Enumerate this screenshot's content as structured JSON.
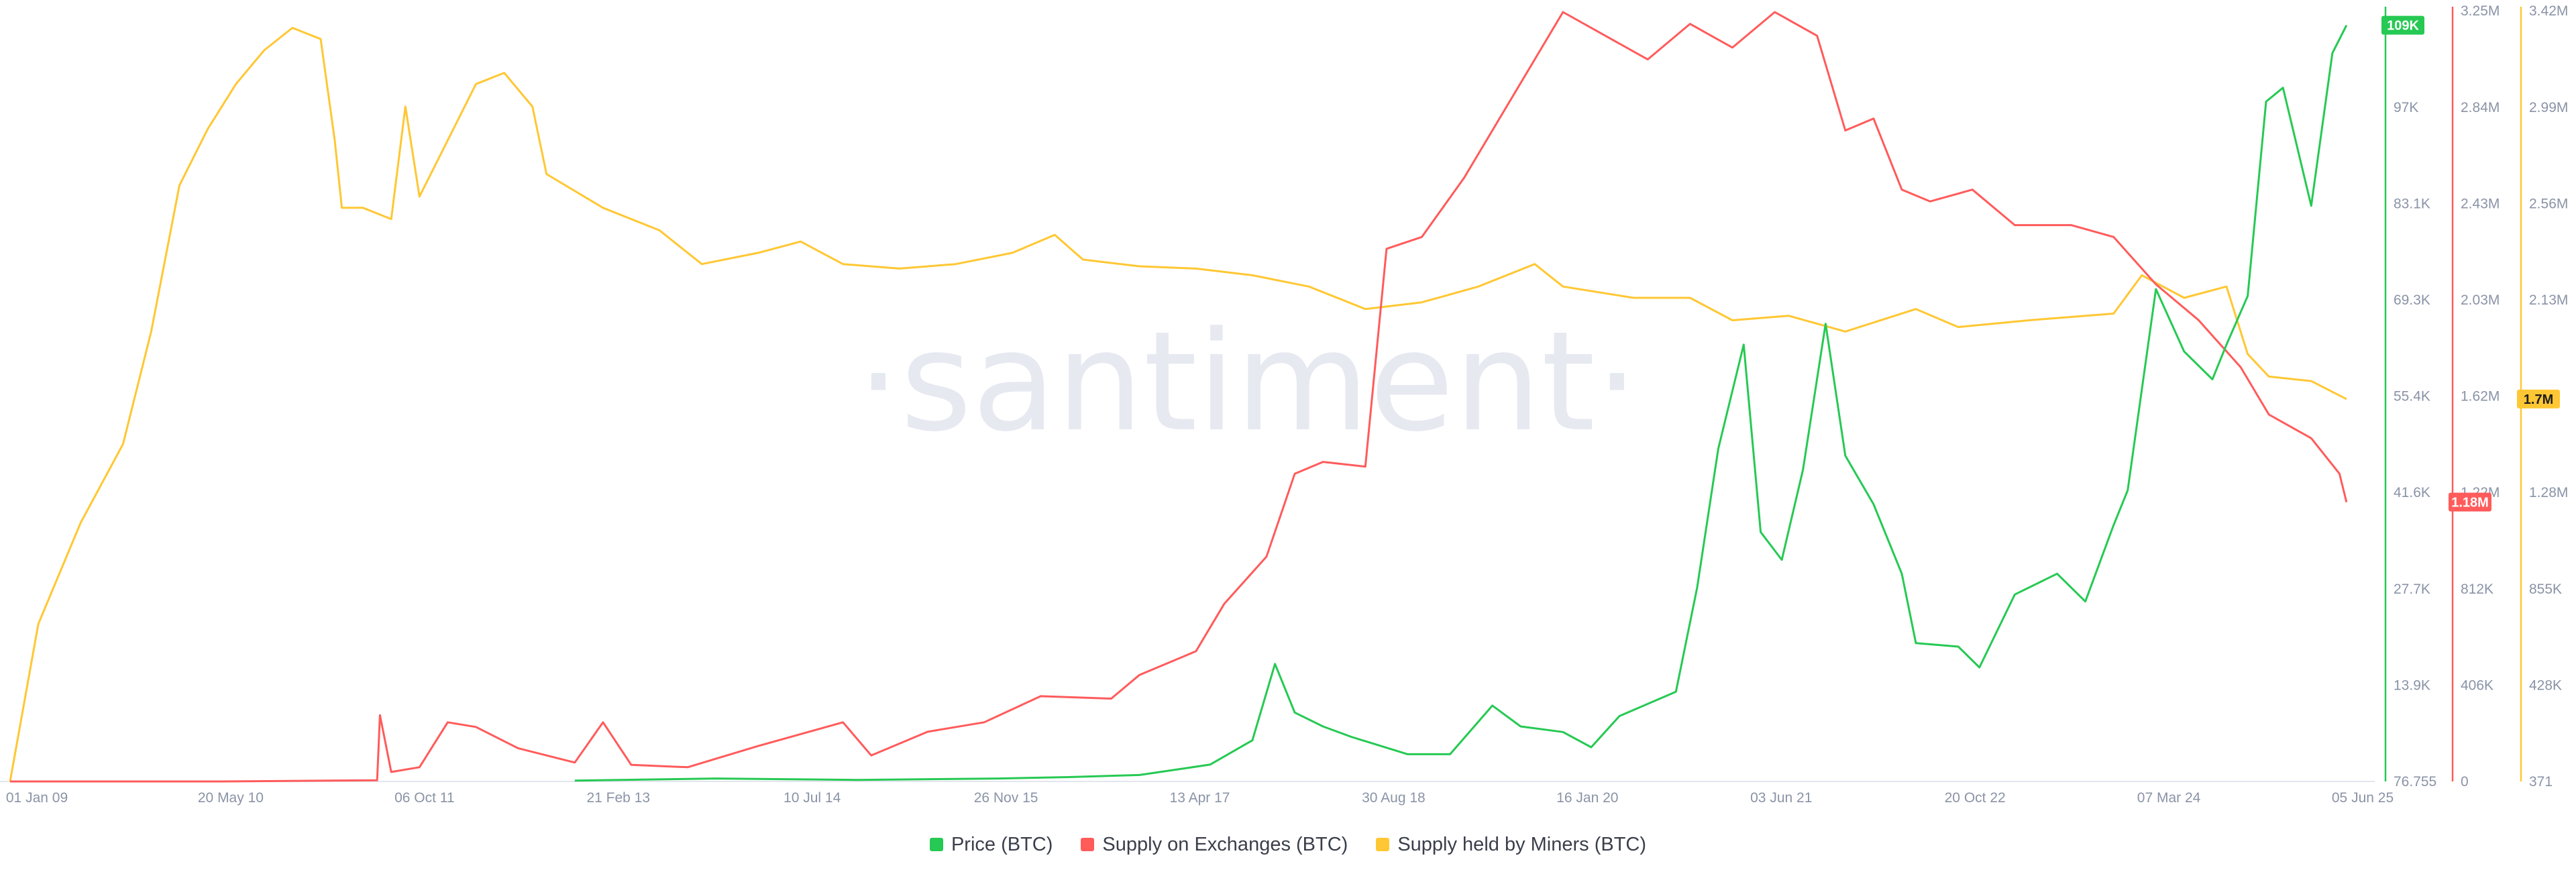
{
  "watermark": "·santiment·",
  "colors": {
    "price": "#26c953",
    "exchanges": "#ff5b5b",
    "miners": "#ffc733",
    "axis_text": "#8a93a6",
    "watermark": "#e7e9f1"
  },
  "legend": [
    {
      "label": "Price (BTC)",
      "color": "#26c953"
    },
    {
      "label": "Supply on Exchanges (BTC)",
      "color": "#ff5b5b"
    },
    {
      "label": "Supply held by Miners (BTC)",
      "color": "#ffc733"
    }
  ],
  "chart_data": {
    "type": "line",
    "x_labels": [
      "01 Jan 09",
      "20 May 10",
      "06 Oct 11",
      "21 Feb 13",
      "10 Jul 14",
      "26 Nov 15",
      "13 Apr 17",
      "30 Aug 18",
      "16 Jan 20",
      "03 Jun 21",
      "20 Oct 22",
      "07 Mar 24",
      "05 Jun 25"
    ],
    "axes": {
      "price": {
        "ticks": [
          "76.755",
          "13.9K",
          "27.7K",
          "41.6K",
          "55.4K",
          "69.3K",
          "83.1K",
          "97K"
        ],
        "range": [
          76.755,
          110900
        ],
        "current": "109K",
        "color": "#26c953"
      },
      "exchanges": {
        "ticks": [
          "0",
          "406K",
          "812K",
          "1.22M",
          "1.62M",
          "2.03M",
          "2.43M",
          "2.84M",
          "3.25M"
        ],
        "range": [
          0,
          3250000
        ],
        "current": "1.18M",
        "color": "#ff5b5b"
      },
      "miners": {
        "ticks": [
          "371",
          "428K",
          "855K",
          "1.28M",
          "1.7M",
          "2.13M",
          "2.56M",
          "2.99M",
          "3.42M"
        ],
        "range": [
          371,
          3420000
        ],
        "current": "1.7M",
        "color": "#ffc733"
      }
    },
    "series": [
      {
        "name": "Price (BTC)",
        "axis": "price",
        "points": [
          [
            2013.0,
            200
          ],
          [
            2014.0,
            500
          ],
          [
            2015.0,
            300
          ],
          [
            2016.0,
            500
          ],
          [
            2016.5,
            700
          ],
          [
            2017.0,
            1000
          ],
          [
            2017.5,
            2500
          ],
          [
            2017.8,
            6000
          ],
          [
            2017.96,
            17000
          ],
          [
            2018.1,
            10000
          ],
          [
            2018.3,
            8000
          ],
          [
            2018.5,
            6500
          ],
          [
            2018.9,
            4000
          ],
          [
            2019.2,
            4000
          ],
          [
            2019.5,
            11000
          ],
          [
            2019.7,
            8000
          ],
          [
            2020.0,
            7200
          ],
          [
            2020.2,
            5000
          ],
          [
            2020.4,
            9500
          ],
          [
            2020.8,
            13000
          ],
          [
            2020.95,
            28000
          ],
          [
            2021.1,
            48000
          ],
          [
            2021.28,
            63000
          ],
          [
            2021.4,
            36000
          ],
          [
            2021.55,
            32000
          ],
          [
            2021.7,
            45000
          ],
          [
            2021.86,
            66000
          ],
          [
            2022.0,
            47000
          ],
          [
            2022.2,
            40000
          ],
          [
            2022.4,
            30000
          ],
          [
            2022.5,
            20000
          ],
          [
            2022.8,
            19500
          ],
          [
            2022.95,
            16500
          ],
          [
            2023.2,
            27000
          ],
          [
            2023.5,
            30000
          ],
          [
            2023.7,
            26000
          ],
          [
            2023.9,
            37000
          ],
          [
            2024.0,
            42000
          ],
          [
            2024.2,
            71000
          ],
          [
            2024.4,
            62000
          ],
          [
            2024.6,
            58000
          ],
          [
            2024.7,
            63000
          ],
          [
            2024.85,
            70000
          ],
          [
            2024.98,
            98000
          ],
          [
            2025.1,
            100000
          ],
          [
            2025.3,
            83000
          ],
          [
            2025.45,
            105000
          ],
          [
            2025.55,
            109000
          ]
        ]
      },
      {
        "name": "Supply on Exchanges (BTC)",
        "axis": "exchanges",
        "points": [
          [
            2009.0,
            0
          ],
          [
            2010.5,
            0
          ],
          [
            2011.6,
            5000
          ],
          [
            2011.62,
            280000
          ],
          [
            2011.7,
            40000
          ],
          [
            2011.9,
            60000
          ],
          [
            2012.1,
            250000
          ],
          [
            2012.3,
            230000
          ],
          [
            2012.6,
            140000
          ],
          [
            2013.0,
            80000
          ],
          [
            2013.2,
            250000
          ],
          [
            2013.4,
            70000
          ],
          [
            2013.8,
            60000
          ],
          [
            2014.3,
            150000
          ],
          [
            2014.9,
            250000
          ],
          [
            2015.1,
            110000
          ],
          [
            2015.5,
            210000
          ],
          [
            2015.9,
            250000
          ],
          [
            2016.3,
            360000
          ],
          [
            2016.8,
            350000
          ],
          [
            2017.0,
            450000
          ],
          [
            2017.4,
            550000
          ],
          [
            2017.6,
            750000
          ],
          [
            2017.9,
            950000
          ],
          [
            2018.1,
            1300000
          ],
          [
            2018.3,
            1350000
          ],
          [
            2018.6,
            1330000
          ],
          [
            2018.75,
            2250000
          ],
          [
            2019.0,
            2300000
          ],
          [
            2019.3,
            2550000
          ],
          [
            2019.8,
            3050000
          ],
          [
            2020.0,
            3250000
          ],
          [
            2020.3,
            3150000
          ],
          [
            2020.6,
            3050000
          ],
          [
            2020.9,
            3200000
          ],
          [
            2021.2,
            3100000
          ],
          [
            2021.5,
            3250000
          ],
          [
            2021.8,
            3150000
          ],
          [
            2022.0,
            2750000
          ],
          [
            2022.2,
            2800000
          ],
          [
            2022.4,
            2500000
          ],
          [
            2022.6,
            2450000
          ],
          [
            2022.9,
            2500000
          ],
          [
            2023.2,
            2350000
          ],
          [
            2023.6,
            2350000
          ],
          [
            2023.9,
            2300000
          ],
          [
            2024.2,
            2100000
          ],
          [
            2024.5,
            1950000
          ],
          [
            2024.8,
            1750000
          ],
          [
            2025.0,
            1550000
          ],
          [
            2025.3,
            1450000
          ],
          [
            2025.5,
            1300000
          ],
          [
            2025.55,
            1180000
          ]
        ]
      },
      {
        "name": "Supply held by Miners (BTC)",
        "axis": "miners",
        "points": [
          [
            2009.0,
            371
          ],
          [
            2009.2,
            700000
          ],
          [
            2009.5,
            1150000
          ],
          [
            2009.8,
            1500000
          ],
          [
            2010.0,
            2000000
          ],
          [
            2010.2,
            2650000
          ],
          [
            2010.4,
            2900000
          ],
          [
            2010.6,
            3100000
          ],
          [
            2010.8,
            3250000
          ],
          [
            2011.0,
            3350000
          ],
          [
            2011.2,
            3300000
          ],
          [
            2011.3,
            2850000
          ],
          [
            2011.35,
            2550000
          ],
          [
            2011.5,
            2550000
          ],
          [
            2011.7,
            2500000
          ],
          [
            2011.8,
            3000000
          ],
          [
            2011.9,
            2600000
          ],
          [
            2012.3,
            3100000
          ],
          [
            2012.5,
            3150000
          ],
          [
            2012.7,
            3000000
          ],
          [
            2012.8,
            2700000
          ],
          [
            2013.2,
            2550000
          ],
          [
            2013.6,
            2450000
          ],
          [
            2013.9,
            2300000
          ],
          [
            2014.3,
            2350000
          ],
          [
            2014.6,
            2400000
          ],
          [
            2014.9,
            2300000
          ],
          [
            2015.3,
            2280000
          ],
          [
            2015.7,
            2300000
          ],
          [
            2016.1,
            2350000
          ],
          [
            2016.4,
            2430000
          ],
          [
            2016.6,
            2320000
          ],
          [
            2017.0,
            2290000
          ],
          [
            2017.4,
            2280000
          ],
          [
            2017.8,
            2250000
          ],
          [
            2018.2,
            2200000
          ],
          [
            2018.6,
            2100000
          ],
          [
            2019.0,
            2130000
          ],
          [
            2019.4,
            2200000
          ],
          [
            2019.8,
            2300000
          ],
          [
            2020.0,
            2200000
          ],
          [
            2020.5,
            2150000
          ],
          [
            2020.9,
            2150000
          ],
          [
            2021.2,
            2050000
          ],
          [
            2021.6,
            2070000
          ],
          [
            2022.0,
            2000000
          ],
          [
            2022.5,
            2100000
          ],
          [
            2022.8,
            2020000
          ],
          [
            2023.3,
            2050000
          ],
          [
            2023.9,
            2080000
          ],
          [
            2024.1,
            2250000
          ],
          [
            2024.4,
            2150000
          ],
          [
            2024.7,
            2200000
          ],
          [
            2024.85,
            1900000
          ],
          [
            2025.0,
            1800000
          ],
          [
            2025.3,
            1780000
          ],
          [
            2025.55,
            1700000
          ]
        ]
      }
    ]
  }
}
